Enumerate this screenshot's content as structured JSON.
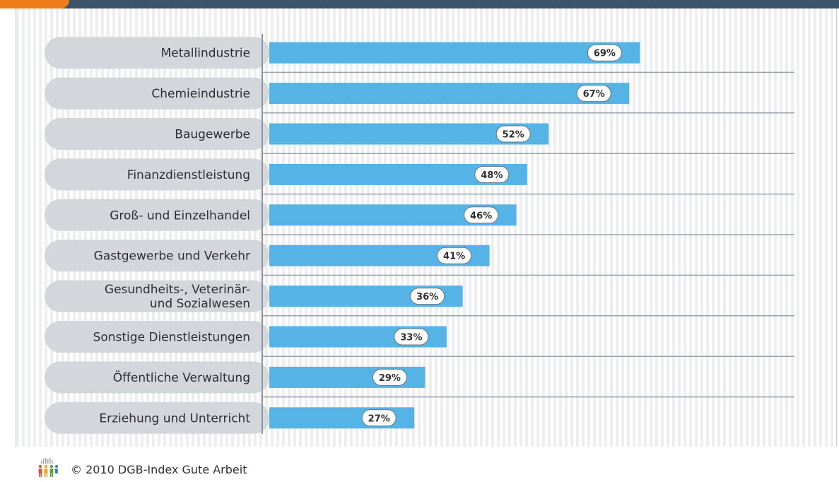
{
  "chart_data": {
    "type": "bar",
    "orientation": "horizontal",
    "categories": [
      "Metallindustrie",
      "Chemieindustrie",
      "Baugewerbe",
      "Finanzdienstleistung",
      "Groß- und Einzelhandel",
      "Gastgewerbe und Verkehr",
      "Gesundheits-, Veterinär-\nund Sozialwesen",
      "Sonstige Dienstleistungen",
      "Öffentliche Verwaltung",
      "Erziehung und Unterricht"
    ],
    "values": [
      69,
      67,
      52,
      48,
      46,
      41,
      36,
      33,
      29,
      27
    ],
    "value_labels": [
      "69%",
      "67%",
      "52%",
      "48%",
      "46%",
      "41%",
      "36%",
      "33%",
      "29%",
      "27%"
    ],
    "unit": "%",
    "xlim": [
      0,
      100
    ],
    "bar_color": "#55b3e6",
    "label_pill_color": "#d3d7dc",
    "grid": false,
    "legend": "none"
  },
  "footer": {
    "copyright": "© 2010 DGB-Index Gute Arbeit",
    "logo_icon": "dgb-people-logo-icon"
  },
  "colors": {
    "top_bar": "#3d5468",
    "accent_tab": "#ee7d19",
    "bar": "#55b3e6",
    "row_separator": "#9aa3ab",
    "axis": "#8c96a0"
  }
}
